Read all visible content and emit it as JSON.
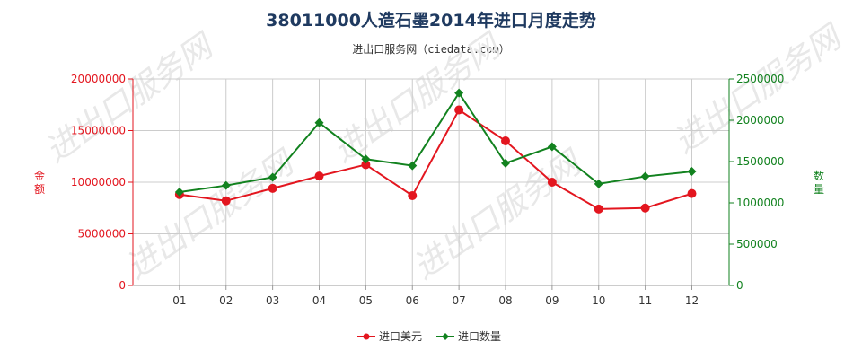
{
  "title": "38011000人造石墨2014年进口月度走势",
  "subtitle": "进出口服务网（ciedata.com）",
  "watermark": "进出口服务网",
  "colors": {
    "usd": "#e3161f",
    "qty": "#12821f",
    "grid": "#cccccc",
    "title": "#1f3a60"
  },
  "chart_data": {
    "type": "line",
    "categories": [
      "01",
      "02",
      "03",
      "04",
      "05",
      "06",
      "07",
      "08",
      "09",
      "10",
      "11",
      "12"
    ],
    "left_axis": {
      "label": "金额",
      "ylim": [
        0,
        20000000
      ],
      "ticks": [
        "0",
        "5000000",
        "10000000",
        "15000000",
        "20000000"
      ]
    },
    "right_axis": {
      "label": "数量",
      "ylim": [
        0,
        2500000
      ],
      "ticks": [
        "0",
        "500000",
        "1000000",
        "1500000",
        "2000000",
        "2500000"
      ]
    },
    "series": [
      {
        "name": "进口美元",
        "axis": "left",
        "marker": "circle",
        "values": [
          8800000,
          8200000,
          9400000,
          10600000,
          11700000,
          8700000,
          17000000,
          14000000,
          10000000,
          7400000,
          7500000,
          8900000
        ]
      },
      {
        "name": "进口数量",
        "axis": "right",
        "marker": "diamond",
        "values": [
          1130000,
          1210000,
          1310000,
          1970000,
          1530000,
          1450000,
          2330000,
          1480000,
          1680000,
          1230000,
          1320000,
          1380000
        ]
      }
    ],
    "grid": true,
    "legend": "bottom-center"
  }
}
